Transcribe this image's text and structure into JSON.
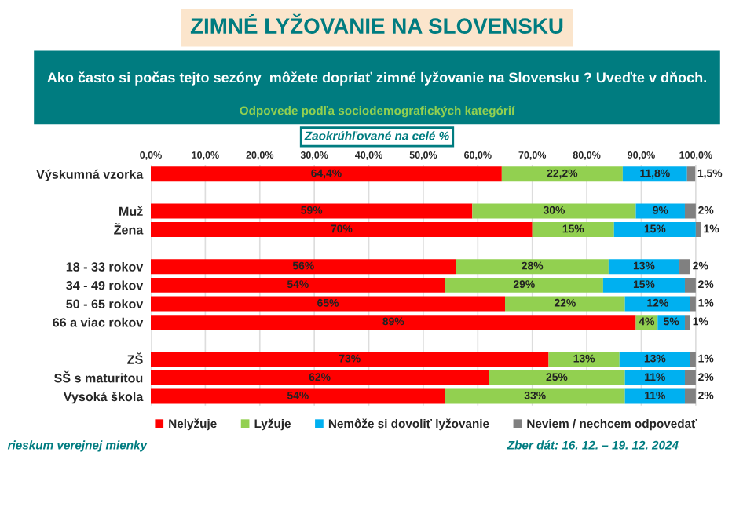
{
  "chart_data": {
    "type": "bar",
    "orientation": "horizontal",
    "stacked": true,
    "title": "ZIMNÉ LYŽOVANIE NA SLOVENSKU",
    "subtitle": "Ako často si počas tejto sezóny  môžete dopriať zimné lyžovanie na Slovensku ? Uveďte v dňoch.",
    "annotations": [
      "Odpovede podľa sociodemografických kategórií",
      "Zaokrúhľované na celé %",
      "rieskum verejnej mienky",
      "Zber dát: 16. 12. – 19. 12. 2024"
    ],
    "categories": [
      "Výskumná vzorka",
      null,
      "Muž",
      "Žena",
      null,
      "18 - 33 rokov",
      "34 - 49 rokov",
      "50 - 65 rokov",
      "66 a viac rokov",
      null,
      "ZŠ",
      "SŠ s maturitou",
      "Vysoká škola"
    ],
    "series": [
      {
        "name": "Nelyžuje",
        "color": "#ff0000",
        "values": [
          64.4,
          null,
          59,
          70,
          null,
          56,
          54,
          65,
          89,
          null,
          73,
          62,
          54
        ],
        "value_labels": [
          "64,4%",
          null,
          "59%",
          "70%",
          null,
          "56%",
          "54%",
          "65%",
          "89%",
          null,
          "73%",
          "62%",
          "54%"
        ]
      },
      {
        "name": "Lyžuje",
        "color": "#92d050",
        "values": [
          22.2,
          null,
          30,
          15,
          null,
          28,
          29,
          22,
          4,
          null,
          13,
          25,
          33
        ],
        "value_labels": [
          "22,2%",
          null,
          "30%",
          "15%",
          null,
          "28%",
          "29%",
          "22%",
          "4%",
          null,
          "13%",
          "25%",
          "33%"
        ]
      },
      {
        "name": "Nemôže si dovoliť lyžovanie",
        "color": "#00b0f0",
        "values": [
          11.8,
          null,
          9,
          15,
          null,
          13,
          15,
          12,
          5,
          null,
          13,
          11,
          11
        ],
        "value_labels": [
          "11,8%",
          null,
          "9%",
          "15%",
          null,
          "13%",
          "15%",
          "12%",
          "5%",
          null,
          "13%",
          "11%",
          "11%"
        ]
      },
      {
        "name": "Neviem / nechcem odpovedať",
        "color": "#808080",
        "values": [
          1.5,
          null,
          2,
          1,
          null,
          2,
          2,
          1,
          1,
          null,
          1,
          2,
          2
        ],
        "value_labels": [
          "1,5%",
          null,
          "2%",
          "1%",
          null,
          "2%",
          "2%",
          "1%",
          "1%",
          null,
          "1%",
          "2%",
          "2%"
        ]
      }
    ],
    "xlim": [
      0,
      101
    ],
    "xticks": [
      {
        "value": 0,
        "label": "0,0%"
      },
      {
        "value": 10,
        "label": "10,0%"
      },
      {
        "value": 20,
        "label": "20,0%"
      },
      {
        "value": 30,
        "label": "30,0%"
      },
      {
        "value": 40,
        "label": "40,0%"
      },
      {
        "value": 50,
        "label": "50,0%"
      },
      {
        "value": 60,
        "label": "60,0%"
      },
      {
        "value": 70,
        "label": "70,0%"
      },
      {
        "value": 80,
        "label": "80,0%"
      },
      {
        "value": 90,
        "label": "90,0%"
      },
      {
        "value": 100,
        "label": "100,0%"
      }
    ],
    "grid": "x",
    "legend": "bottom"
  }
}
